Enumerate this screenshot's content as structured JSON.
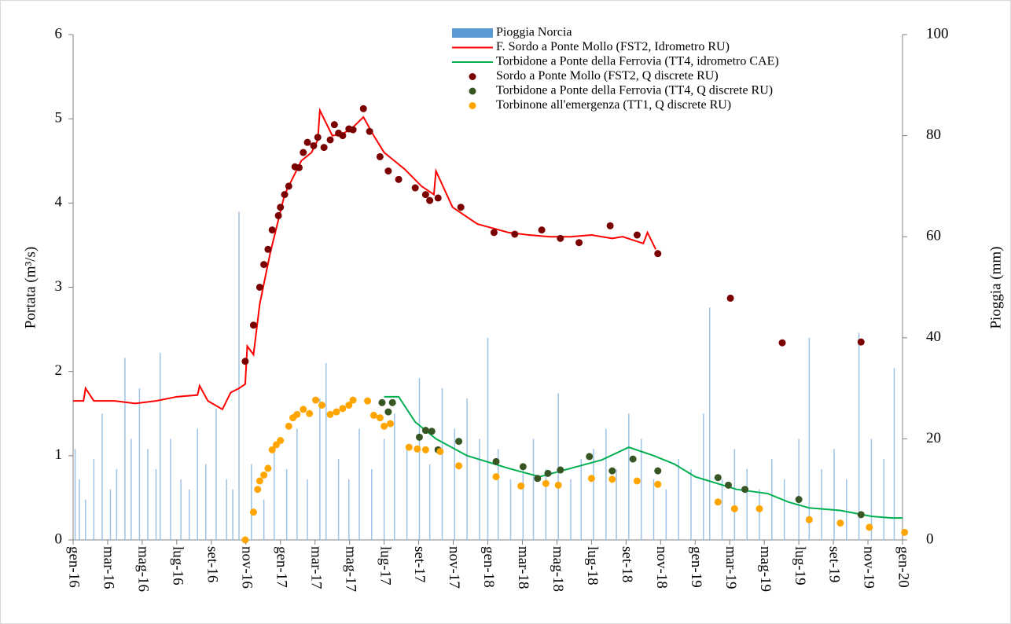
{
  "chart_data": {
    "type": "line",
    "ylabel": "Portata (m³/s)",
    "y2label": "Pioggia (mm)",
    "xlim": [
      2016,
      2020
    ],
    "ylim": [
      0,
      6
    ],
    "yticks": [
      0,
      1,
      2,
      3,
      4,
      5,
      6
    ],
    "y2lim": [
      0,
      100
    ],
    "y2ticks": [
      0,
      20,
      40,
      60,
      80,
      100
    ],
    "xticks": [
      {
        "value": 2016,
        "label": "gen-16"
      },
      {
        "value": 2016.1667,
        "label": "mar-16"
      },
      {
        "value": 2016.3333,
        "label": "mag-16"
      },
      {
        "value": 2016.5,
        "label": "lug-16"
      },
      {
        "value": 2016.6667,
        "label": "set-16"
      },
      {
        "value": 2016.8333,
        "label": "nov-16"
      },
      {
        "value": 2017,
        "label": "gen-17"
      },
      {
        "value": 2017.1667,
        "label": "mar-17"
      },
      {
        "value": 2017.3333,
        "label": "mag-17"
      },
      {
        "value": 2017.5,
        "label": "lug-17"
      },
      {
        "value": 2017.6667,
        "label": "set-17"
      },
      {
        "value": 2017.8333,
        "label": "nov-17"
      },
      {
        "value": 2018,
        "label": "gen-18"
      },
      {
        "value": 2018.1667,
        "label": "mar-18"
      },
      {
        "value": 2018.3333,
        "label": "mag-18"
      },
      {
        "value": 2018.5,
        "label": "lug-18"
      },
      {
        "value": 2018.6667,
        "label": "set-18"
      },
      {
        "value": 2018.8333,
        "label": "nov-18"
      },
      {
        "value": 2019,
        "label": "gen-19"
      },
      {
        "value": 2019.1667,
        "label": "mar-19"
      },
      {
        "value": 2019.3333,
        "label": "mag-19"
      },
      {
        "value": 2019.5,
        "label": "lug-19"
      },
      {
        "value": 2019.6667,
        "label": "set-19"
      },
      {
        "value": 2019.8333,
        "label": "nov-19"
      },
      {
        "value": 2020,
        "label": "gen-20"
      }
    ],
    "series": [
      {
        "name": "Pioggia Norcia",
        "type": "bar",
        "axis": "y2",
        "color": "#9dc3e6",
        "x": [
          2016.01,
          2016.03,
          2016.06,
          2016.1,
          2016.14,
          2016.18,
          2016.21,
          2016.25,
          2016.28,
          2016.32,
          2016.36,
          2016.4,
          2016.42,
          2016.47,
          2016.52,
          2016.56,
          2016.6,
          2016.64,
          2016.69,
          2016.74,
          2016.77,
          2016.8,
          2016.86,
          2016.92,
          2016.97,
          2017.03,
          2017.08,
          2017.13,
          2017.19,
          2017.22,
          2017.28,
          2017.33,
          2017.38,
          2017.44,
          2017.5,
          2017.55,
          2017.61,
          2017.67,
          2017.72,
          2017.78,
          2017.84,
          2017.9,
          2017.96,
          2018.0,
          2018.05,
          2018.11,
          2018.17,
          2018.22,
          2018.28,
          2018.34,
          2018.4,
          2018.45,
          2018.51,
          2018.57,
          2018.62,
          2018.68,
          2018.74,
          2018.8,
          2018.86,
          2018.92,
          2018.98,
          2019.04,
          2019.07,
          2019.13,
          2019.19,
          2019.25,
          2019.31,
          2019.37,
          2019.43,
          2019.5,
          2019.55,
          2019.61,
          2019.67,
          2019.73,
          2019.79,
          2019.85,
          2019.91,
          2019.96
        ],
        "values": [
          18,
          12,
          8,
          16,
          25,
          10,
          14,
          36,
          20,
          30,
          18,
          14,
          37,
          20,
          12,
          10,
          22,
          15,
          26,
          12,
          10,
          65,
          15,
          8,
          18,
          14,
          22,
          12,
          28,
          35,
          16,
          12,
          22,
          14,
          20,
          25,
          18,
          32,
          15,
          30,
          22,
          28,
          20,
          40,
          18,
          12,
          15,
          20,
          14,
          29,
          12,
          16,
          18,
          22,
          14,
          25,
          20,
          12,
          10,
          16,
          14,
          25,
          46,
          12,
          18,
          14,
          10,
          16,
          12,
          20,
          40,
          14,
          18,
          12,
          41,
          20,
          16,
          34
        ]
      },
      {
        "name": "F. Sordo a Ponte Mollo (FST2, Idrometro RU)",
        "type": "line",
        "color": "#ff0000",
        "x": [
          2016,
          2016.05,
          2016.06,
          2016.1,
          2016.2,
          2016.3,
          2016.4,
          2016.5,
          2016.6,
          2016.61,
          2016.65,
          2016.72,
          2016.76,
          2016.8,
          2016.83,
          2016.84,
          2016.87,
          2016.9,
          2016.95,
          2017.0,
          2017.02,
          2017.06,
          2017.1,
          2017.15,
          2017.18,
          2017.19,
          2017.25,
          2017.3,
          2017.35,
          2017.4,
          2017.45,
          2017.5,
          2017.55,
          2017.6,
          2017.68,
          2017.74,
          2017.75,
          2017.83,
          2017.95,
          2018.1,
          2018.2,
          2018.3,
          2018.4,
          2018.5,
          2018.6,
          2018.65,
          2018.75,
          2018.77,
          2018.81
        ],
        "values": [
          1.65,
          1.65,
          1.8,
          1.65,
          1.65,
          1.62,
          1.65,
          1.7,
          1.72,
          1.83,
          1.65,
          1.55,
          1.75,
          1.8,
          1.85,
          2.3,
          2.2,
          2.8,
          3.4,
          3.9,
          4.1,
          4.3,
          4.5,
          4.6,
          4.75,
          5.1,
          4.8,
          4.82,
          4.9,
          5.02,
          4.8,
          4.6,
          4.5,
          4.4,
          4.2,
          4.1,
          4.38,
          3.95,
          3.75,
          3.65,
          3.62,
          3.6,
          3.6,
          3.62,
          3.58,
          3.6,
          3.52,
          3.65,
          3.45
        ]
      },
      {
        "name": "Torbidone a Ponte della Ferrovia (TT4, idrometro CAE)",
        "type": "line",
        "color": "#00b050",
        "x": [
          2017.5,
          2017.57,
          2017.65,
          2017.75,
          2017.9,
          2018.1,
          2018.25,
          2018.4,
          2018.55,
          2018.68,
          2018.8,
          2018.9,
          2019.0,
          2019.2,
          2019.35,
          2019.45,
          2019.55,
          2019.7,
          2019.85,
          2019.95,
          2020.0
        ],
        "values": [
          1.7,
          1.7,
          1.4,
          1.2,
          1.0,
          0.85,
          0.75,
          0.85,
          0.95,
          1.1,
          1.0,
          0.9,
          0.75,
          0.6,
          0.55,
          0.45,
          0.38,
          0.35,
          0.28,
          0.26,
          0.26
        ]
      },
      {
        "name": "Sordo a Ponte Mollo (FST2, Q discrete RU)",
        "type": "scatter",
        "color": "#7b0000",
        "x": [
          2016.83,
          2016.87,
          2016.9,
          2016.92,
          2016.94,
          2016.96,
          2016.99,
          2017.0,
          2017.02,
          2017.04,
          2017.07,
          2017.09,
          2017.11,
          2017.13,
          2017.16,
          2017.18,
          2017.21,
          2017.24,
          2017.26,
          2017.28,
          2017.3,
          2017.33,
          2017.35,
          2017.4,
          2017.43,
          2017.48,
          2017.52,
          2017.57,
          2017.65,
          2017.7,
          2017.72,
          2017.76,
          2017.87,
          2018.03,
          2018.13,
          2018.26,
          2018.35,
          2018.44,
          2018.59,
          2018.72,
          2018.82,
          2019.17,
          2019.42,
          2019.8
        ],
        "values": [
          2.12,
          2.55,
          3.0,
          3.27,
          3.45,
          3.68,
          3.85,
          3.95,
          4.1,
          4.2,
          4.43,
          4.42,
          4.6,
          4.72,
          4.68,
          4.78,
          4.66,
          4.75,
          4.93,
          4.83,
          4.8,
          4.88,
          4.87,
          5.12,
          4.85,
          4.55,
          4.38,
          4.28,
          4.18,
          4.1,
          4.03,
          4.06,
          3.95,
          3.65,
          3.63,
          3.68,
          3.58,
          3.53,
          3.73,
          3.62,
          3.4,
          2.87,
          2.34,
          2.35
        ]
      },
      {
        "name": "Torbidone a Ponte della Ferrovia (TT4, Q discrete RU)",
        "type": "scatter",
        "color": "#375623",
        "x": [
          2017.49,
          2017.52,
          2017.54,
          2017.67,
          2017.7,
          2017.73,
          2017.76,
          2017.86,
          2018.04,
          2018.17,
          2018.24,
          2018.29,
          2018.35,
          2018.49,
          2018.6,
          2018.7,
          2018.82,
          2019.11,
          2019.16,
          2019.24,
          2019.5,
          2019.8
        ],
        "values": [
          1.63,
          1.52,
          1.63,
          1.22,
          1.3,
          1.29,
          1.07,
          1.17,
          0.93,
          0.87,
          0.73,
          0.79,
          0.83,
          0.99,
          0.82,
          0.96,
          0.82,
          0.74,
          0.65,
          0.6,
          0.48,
          0.3
        ]
      },
      {
        "name": "Torbinone all'emergenza (TT1, Q discrete RU)",
        "type": "scatter",
        "color": "#ffa500",
        "x": [
          2016.83,
          2016.87,
          2016.89,
          2016.9,
          2016.92,
          2016.94,
          2016.96,
          2016.98,
          2017.0,
          2017.04,
          2017.06,
          2017.08,
          2017.11,
          2017.14,
          2017.17,
          2017.2,
          2017.24,
          2017.27,
          2017.3,
          2017.33,
          2017.35,
          2017.42,
          2017.45,
          2017.48,
          2017.5,
          2017.53,
          2017.62,
          2017.66,
          2017.7,
          2017.77,
          2017.86,
          2018.04,
          2018.16,
          2018.28,
          2018.34,
          2018.5,
          2018.6,
          2018.72,
          2018.82,
          2019.11,
          2019.19,
          2019.31,
          2019.55,
          2019.7,
          2019.84,
          2020.01
        ],
        "values": [
          0.0,
          0.33,
          0.6,
          0.7,
          0.77,
          0.85,
          1.07,
          1.13,
          1.18,
          1.35,
          1.45,
          1.49,
          1.55,
          1.5,
          1.66,
          1.6,
          1.49,
          1.52,
          1.56,
          1.6,
          1.66,
          1.65,
          1.48,
          1.45,
          1.35,
          1.38,
          1.1,
          1.08,
          1.07,
          1.05,
          0.88,
          0.75,
          0.64,
          0.67,
          0.65,
          0.73,
          0.72,
          0.7,
          0.66,
          0.45,
          0.37,
          0.37,
          0.24,
          0.2,
          0.15,
          0.09
        ]
      }
    ]
  }
}
